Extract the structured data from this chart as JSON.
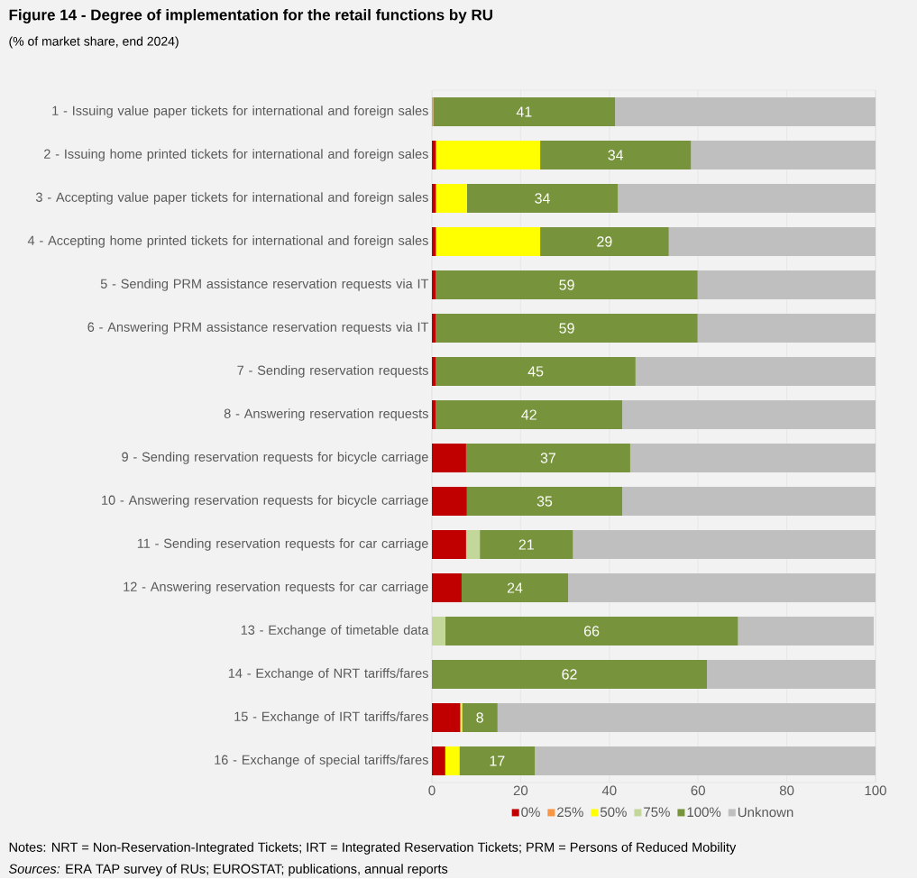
{
  "chart_data": {
    "type": "bar",
    "orientation": "horizontal",
    "stacked": true,
    "title": "Figure 14 - Degree of implementation for the retail functions by RU",
    "subtitle": "(% of market share, end 2024)",
    "categories": [
      "1 - Issuing value paper tickets for international and foreign sales",
      "2 - Issuing home printed tickets for international and foreign sales",
      "3 - Accepting value paper tickets for international and foreign sales",
      "4 - Accepting home printed tickets for international and foreign sales",
      "5 - Sending PRM assistance reservation requests via IT",
      "6 - Answering PRM assistance reservation requests via IT",
      "7 - Sending reservation requests",
      "8 - Answering reservation requests",
      "9 - Sending reservation requests for bicycle carriage",
      "10 - Answering reservation requests for bicycle carriage",
      "11 - Sending reservation requests for car carriage",
      "12 - Answering reservation requests for car carriage",
      "13 - Exchange of timetable data",
      "14 - Exchange of NRT tariffs/fares",
      "15 - Exchange of IRT tariffs/fares",
      "16 - Exchange of special tariffs/fares"
    ],
    "series": [
      {
        "name": "0%",
        "color": "#c00000",
        "values": [
          0,
          0.9,
          0.9,
          0.9,
          0.9,
          0.9,
          0.9,
          0.9,
          7.7,
          7.9,
          7.7,
          6.7,
          0,
          0,
          6.4,
          3.0
        ]
      },
      {
        "name": "25%",
        "color": "#f79646",
        "values": [
          0.3,
          0,
          0,
          0,
          0,
          0,
          0,
          0,
          0,
          0,
          0,
          0,
          0,
          0,
          0,
          0
        ]
      },
      {
        "name": "50%",
        "color": "#ffff00",
        "values": [
          0,
          23.5,
          7.0,
          23.5,
          0,
          0,
          0,
          0,
          0,
          0,
          0,
          0,
          0,
          0,
          0.4,
          3.2
        ]
      },
      {
        "name": "75%",
        "color": "#c4d79b",
        "values": [
          0,
          0,
          0,
          0,
          0,
          0,
          0,
          0,
          0,
          0,
          3.1,
          0,
          3.0,
          0,
          0,
          0
        ]
      },
      {
        "name": "100%",
        "color": "#77933c",
        "values": [
          41,
          34,
          34,
          29,
          59,
          59,
          45,
          42,
          37,
          35,
          21,
          24,
          66,
          62,
          8,
          17
        ],
        "value_labels": [
          "41",
          "34",
          "34",
          "29",
          "59",
          "59",
          "45",
          "42",
          "37",
          "35",
          "21",
          "24",
          "66",
          "62",
          "8",
          "17"
        ]
      },
      {
        "name": "Unknown",
        "color": "#bfbfbf",
        "values": [
          58.7,
          41.6,
          58.1,
          46.6,
          40.1,
          40.1,
          54.1,
          57.1,
          55.3,
          57.1,
          68.2,
          69.3,
          30.6,
          38,
          85.2,
          76.8
        ]
      }
    ],
    "xlim": [
      0,
      100
    ],
    "xticks": [
      0,
      20,
      40,
      60,
      80,
      100
    ],
    "grid": "x",
    "legend": "bottom",
    "annotations": [
      "Notes: NRT = Non-Reservation-Integrated Tickets; IRT = Integrated Reservation Tickets; PRM = Persons of Reduced Mobility",
      "*Sources:* ERA TAP survey of RUs; EUROSTAT; publications, annual reports"
    ]
  }
}
